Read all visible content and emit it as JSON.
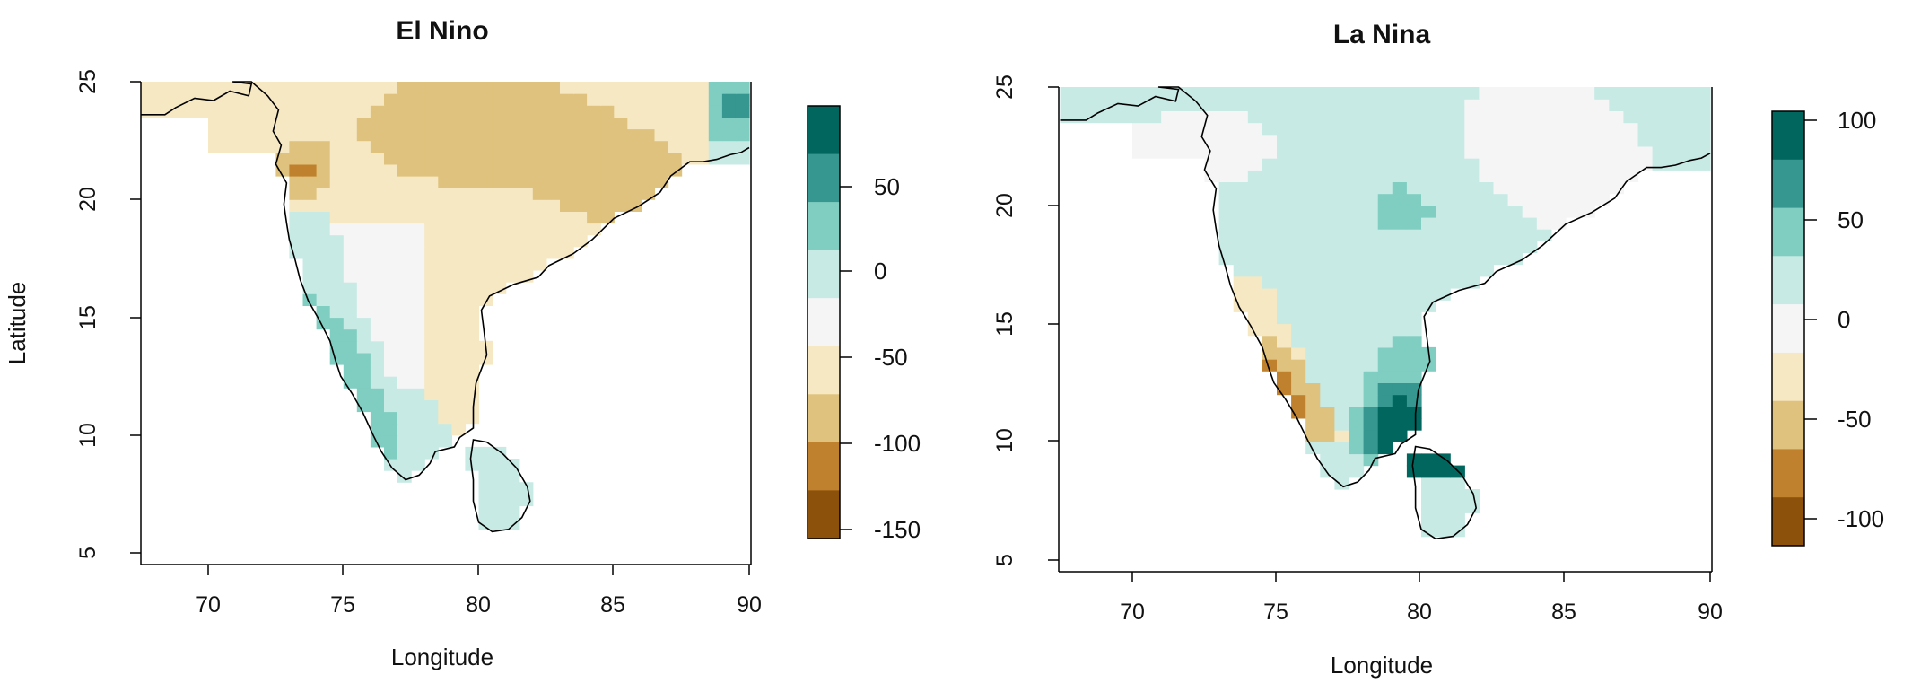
{
  "figure": {
    "ylabel": "Latitude",
    "xlabel": "Longitude"
  },
  "panels": [
    {
      "id": "el-nino",
      "title": "El Nino",
      "xlim": [
        67.5,
        90
      ],
      "ylim": [
        4.5,
        25
      ],
      "xticks": [
        "70",
        "75",
        "80",
        "85",
        "90"
      ],
      "yticks": [
        "5",
        "10",
        "15",
        "20",
        "25"
      ],
      "colorbar": {
        "breaks": [
          -175,
          -150,
          -100,
          -50,
          0,
          50,
          75,
          100
        ],
        "colors": [
          "#8c510a",
          "#bf812d",
          "#dfc27d",
          "#f6e8c3",
          "#f5f5f5",
          "#c7eae5",
          "#80cdc1",
          "#35978f",
          "#01665e"
        ],
        "labels": [
          "50",
          "0",
          "-50",
          "-100",
          "-150"
        ]
      },
      "anomaly_pattern": "negative (dry) over central, northern and eastern India; positive (wet) along the west coast from about 11°N to 19°N and over Sri Lanka"
    },
    {
      "id": "la-nina",
      "title": "La Nina",
      "xlim": [
        67.5,
        90
      ],
      "ylim": [
        4.5,
        25
      ],
      "xticks": [
        "70",
        "75",
        "80",
        "85",
        "90"
      ],
      "yticks": [
        "5",
        "10",
        "15",
        "20",
        "25"
      ],
      "colorbar": {
        "labels": [
          "100",
          "50",
          "0",
          "-50",
          "-100"
        ]
      },
      "anomaly_pattern": "positive (wet) over most of India, strongest over the southeast coast and Sri Lanka; negative (dry) along the southwest coast from about 10°N to 16°N"
    }
  ],
  "chart_data": {
    "type": "heatmap",
    "x_variable": "Longitude",
    "y_variable": "Latitude",
    "panels": [
      "El Nino",
      "La Nina"
    ]
  }
}
